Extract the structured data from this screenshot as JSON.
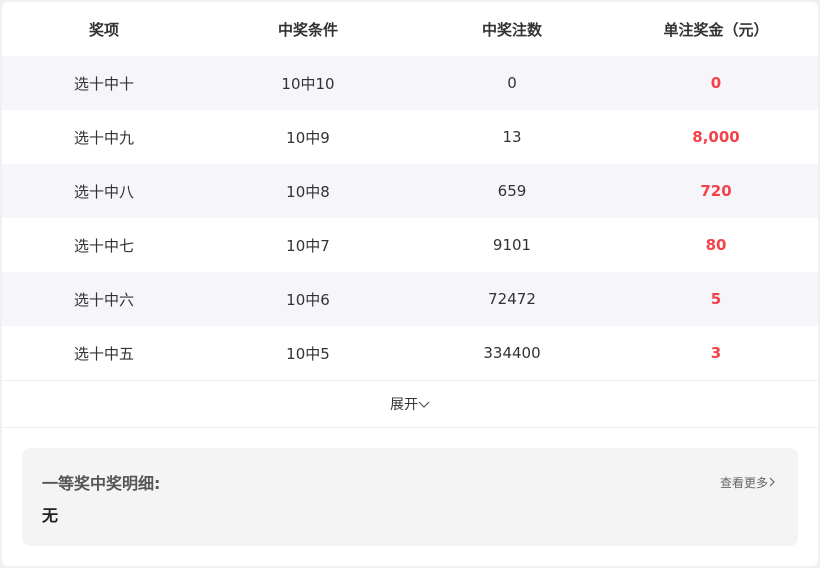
{
  "table": {
    "headers": [
      "奖项",
      "中奖条件",
      "中奖注数",
      "单注奖金（元）"
    ],
    "rows": [
      [
        "选十中十",
        "10中10",
        "0",
        "0"
      ],
      [
        "选十中九",
        "10中9",
        "13",
        "8,000"
      ],
      [
        "选十中八",
        "10中8",
        "659",
        "720"
      ],
      [
        "选十中七",
        "10中7",
        "9101",
        "80"
      ],
      [
        "选十中六",
        "10中6",
        "72472",
        "5"
      ],
      [
        "选十中五",
        "10中5",
        "334400",
        "3"
      ]
    ]
  },
  "expand_label": "展开",
  "detail": {
    "title": "一等奖中奖明细:",
    "value": "无",
    "more_label": "查看更多"
  },
  "colors": {
    "prize": "#f2434a",
    "alt_row": "#f6f6fa"
  }
}
